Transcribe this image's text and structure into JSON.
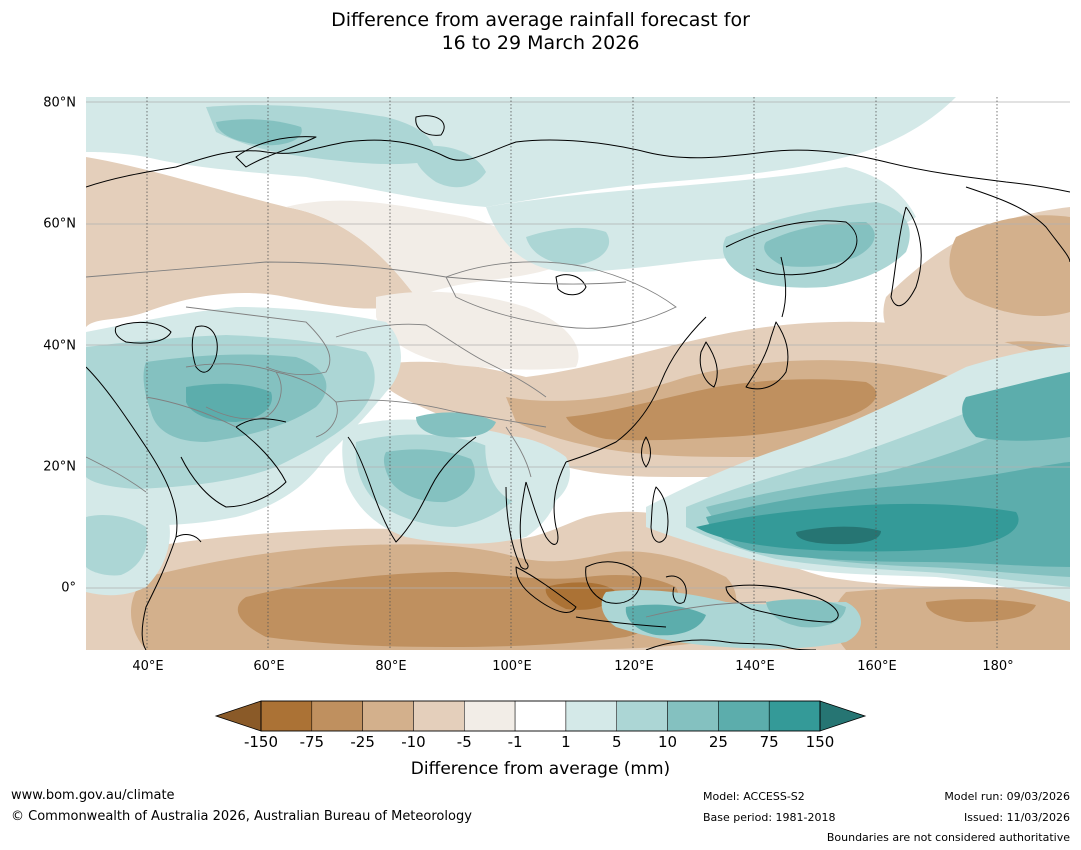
{
  "title": {
    "line1": "Difference from average rainfall forecast for",
    "line2": "16 to 29 March 2026"
  },
  "map": {
    "lat_labels": [
      "80°N",
      "60°N",
      "40°N",
      "20°N",
      "0°"
    ],
    "lon_labels": [
      "40°E",
      "60°E",
      "80°E",
      "100°E",
      "120°E",
      "140°E",
      "160°E",
      "180°"
    ],
    "lat_values": [
      80,
      60,
      40,
      20,
      0
    ],
    "lon_values": [
      40,
      60,
      80,
      100,
      120,
      140,
      160,
      180
    ],
    "extent": {
      "lon_min": 30,
      "lon_max": 192,
      "lat_min": -10,
      "lat_max": 81
    }
  },
  "legend": {
    "tick_labels": [
      "-150",
      "-75",
      "-25",
      "-10",
      "-5",
      "-1",
      "1",
      "5",
      "10",
      "25",
      "75",
      "150"
    ],
    "colors": [
      "#ab7235",
      "#bf905f",
      "#d3b08c",
      "#e4cfbb",
      "#f2ede7",
      "#ffffff",
      "#d4e9e8",
      "#acd6d5",
      "#84c1c0",
      "#5cadac",
      "#349a98"
    ],
    "under_color": "#8a5a28",
    "over_color": "#267573",
    "label": "Difference from average (mm)"
  },
  "footer": {
    "website": "www.bom.gov.au/climate",
    "copyright": "© Commonwealth of Australia 2026, Australian Bureau of Meteorology",
    "model": "Model: ACCESS-S2",
    "base_period": "Base period: 1981-2018",
    "model_run": "Model run: 09/03/2026",
    "issued": "Issued: 11/03/2026",
    "disclaimer": "Boundaries are not considered authoritative"
  }
}
